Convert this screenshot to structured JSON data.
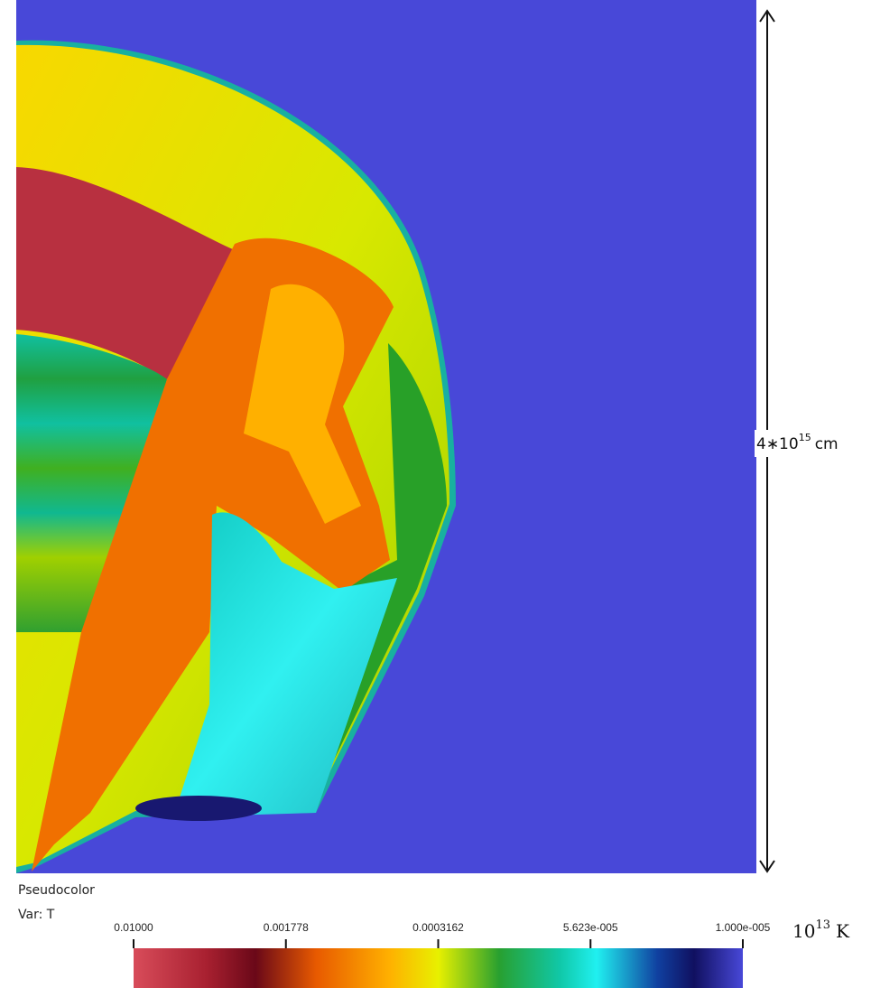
{
  "scale_bar": {
    "coefficient": "4∗10",
    "exponent": "15",
    "unit": "cm"
  },
  "legend": {
    "title": "Pseudocolor",
    "variable": "Var: T",
    "tick_labels": [
      "0.01000",
      "0.001778",
      "0.0003162",
      "5.623e-005",
      "1.000e-005"
    ],
    "unit": {
      "base": "10",
      "exponent": "13",
      "unit": "K"
    }
  }
}
